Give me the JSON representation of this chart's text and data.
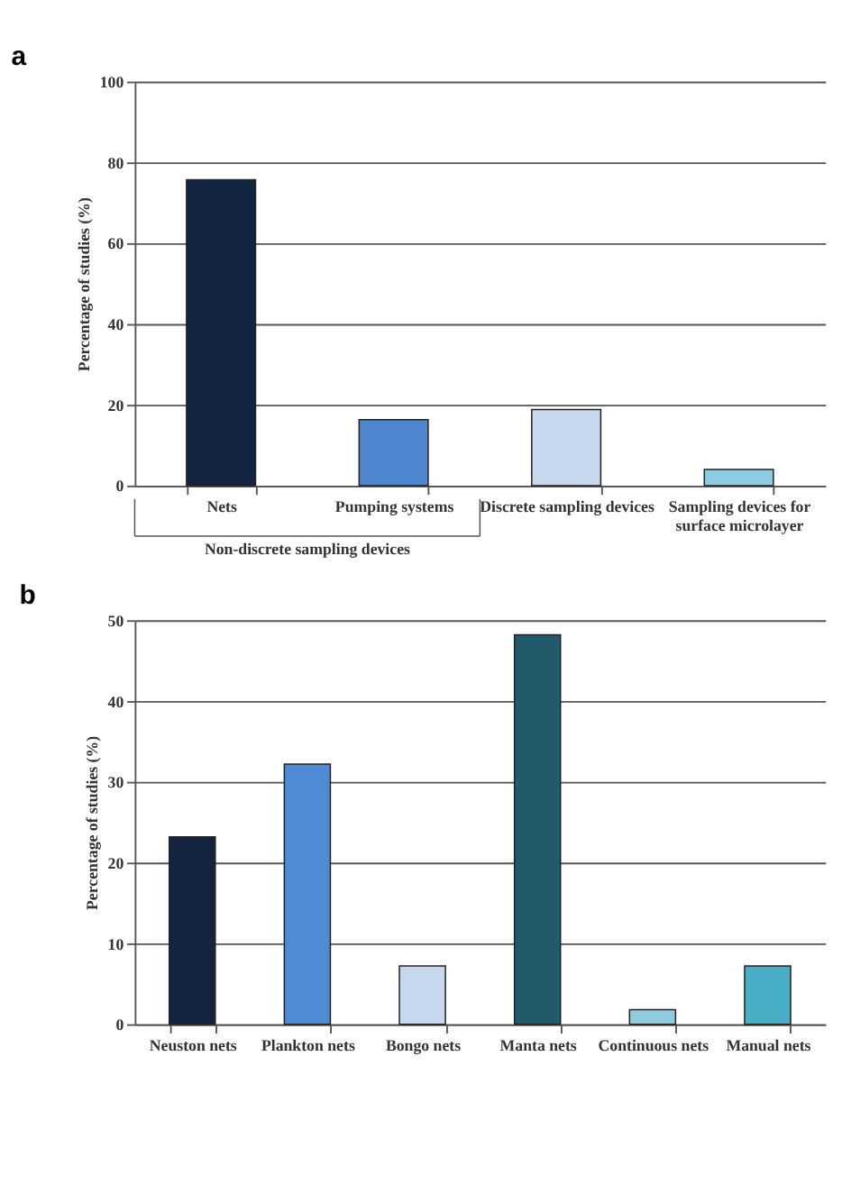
{
  "chart_data": [
    {
      "type": "bar",
      "title": "a",
      "ylabel": "Percentage of studies (%)",
      "categories": [
        "Nets",
        "Pumping systems",
        "Discrete sampling devices",
        "Sampling devices for surface microlayer"
      ],
      "values": [
        75.7,
        16.3,
        18.8,
        4.0
      ],
      "colors": [
        "#12243f",
        "#4f86d0",
        "#c6d8ee",
        "#8fcbe0"
      ],
      "ylim": [
        0,
        100
      ],
      "yticks": [
        0,
        20,
        40,
        60,
        80,
        100
      ],
      "grid": "y",
      "annotations": [
        "Non-discrete sampling devices"
      ]
    },
    {
      "type": "bar",
      "title": "b",
      "ylabel": "Percentage of studies (%)",
      "categories": [
        "Neuston nets",
        "Plankton nets",
        "Bongo nets",
        "Manta nets",
        "Continuous nets",
        "Manual nets"
      ],
      "values": [
        23.2,
        32.2,
        7.2,
        48.2,
        1.8,
        7.2
      ],
      "colors": [
        "#12243f",
        "#4f8bd4",
        "#c6d8ee",
        "#215a6a",
        "#90cbdd",
        "#47aec6"
      ],
      "ylim": [
        0,
        50
      ],
      "yticks": [
        0,
        10,
        20,
        30,
        40,
        50
      ],
      "grid": "y"
    }
  ]
}
